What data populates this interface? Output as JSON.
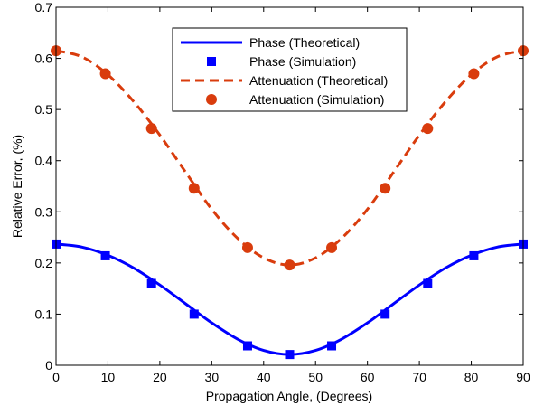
{
  "chart_data": {
    "type": "line",
    "xlabel": "Propagation Angle, (Degrees)",
    "ylabel": "Relative Error, (%)",
    "xlim": [
      0,
      90
    ],
    "ylim": [
      0,
      0.7
    ],
    "xticks": [
      0,
      10,
      20,
      30,
      40,
      50,
      60,
      70,
      80,
      90
    ],
    "yticks": [
      0,
      0.1,
      0.2,
      0.3,
      0.4,
      0.5,
      0.6,
      0.7
    ],
    "ytick_labels": [
      "0",
      "0.1",
      "0.2",
      "0.3",
      "0.4",
      "0.5",
      "0.6",
      "0.7"
    ],
    "grid": false,
    "legend_position": "top-center",
    "series": [
      {
        "name": "Phase (Theoretical)",
        "style": "solid-line",
        "color": "#0000ff",
        "x": [
          0,
          5,
          10,
          15,
          20,
          25,
          30,
          35,
          40,
          45,
          50,
          55,
          60,
          65,
          70,
          75,
          80,
          85,
          90
        ],
        "y": [
          0.237,
          0.231,
          0.215,
          0.19,
          0.157,
          0.12,
          0.083,
          0.051,
          0.029,
          0.021,
          0.029,
          0.051,
          0.083,
          0.12,
          0.157,
          0.19,
          0.215,
          0.231,
          0.237
        ]
      },
      {
        "name": "Phase (Simulation)",
        "style": "square-markers",
        "color": "#0000ff",
        "x": [
          0,
          9.5,
          18.4,
          26.6,
          36.9,
          45,
          53.1,
          63.4,
          71.6,
          80.5,
          90
        ],
        "y": [
          0.237,
          0.214,
          0.16,
          0.1,
          0.038,
          0.021,
          0.038,
          0.1,
          0.16,
          0.214,
          0.237
        ]
      },
      {
        "name": "Attenuation (Theoretical)",
        "style": "dashed-line",
        "color": "#d93c0d",
        "x": [
          0,
          5,
          10,
          15,
          20,
          25,
          30,
          35,
          40,
          45,
          50,
          55,
          60,
          65,
          70,
          75,
          80,
          85,
          90
        ],
        "y": [
          0.615,
          0.603,
          0.568,
          0.515,
          0.45,
          0.377,
          0.305,
          0.248,
          0.21,
          0.196,
          0.21,
          0.248,
          0.305,
          0.377,
          0.45,
          0.515,
          0.568,
          0.603,
          0.615
        ]
      },
      {
        "name": "Attenuation (Simulation)",
        "style": "circle-markers",
        "color": "#d93c0d",
        "x": [
          0,
          9.5,
          18.4,
          26.6,
          36.9,
          45,
          53.1,
          63.4,
          71.6,
          80.5,
          90
        ],
        "y": [
          0.615,
          0.57,
          0.463,
          0.346,
          0.23,
          0.196,
          0.23,
          0.346,
          0.463,
          0.57,
          0.615
        ]
      }
    ]
  }
}
